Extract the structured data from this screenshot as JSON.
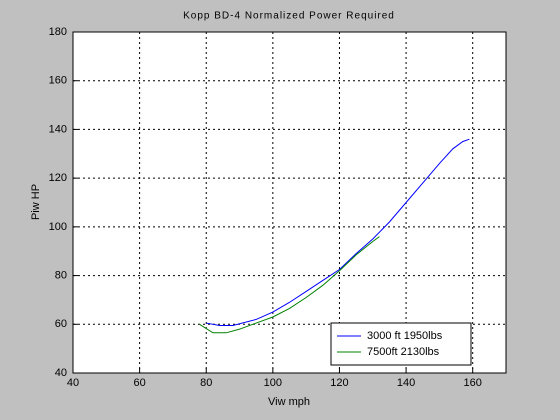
{
  "chart_data": {
    "type": "line",
    "title": "Kopp BD-4 Normalized Power Required",
    "x_label": "Viw mph",
    "y_label": "Piw HP",
    "xlim": [
      40,
      170
    ],
    "xticks": [
      40,
      60,
      80,
      100,
      120,
      140,
      160
    ],
    "ylim": [
      40,
      180
    ],
    "yticks": [
      40,
      60,
      80,
      100,
      120,
      140,
      160,
      180
    ],
    "grid": true,
    "legend": "lower right",
    "series": [
      {
        "name": "3000 ft 1950lbs",
        "color": "#0000ff",
        "x": [
          80,
          84,
          88,
          95,
          100,
          105,
          110,
          115,
          120,
          125,
          130,
          135,
          140,
          145,
          150,
          154,
          157,
          159
        ],
        "values": [
          60.5,
          59.5,
          59.5,
          62,
          65,
          69,
          73.5,
          78,
          82.5,
          89,
          95,
          102,
          110,
          118,
          126,
          132,
          135,
          136
        ]
      },
      {
        "name": "7500ft 2130lbs",
        "color": "#008000",
        "x": [
          78,
          82,
          86,
          90,
          95,
          100,
          105,
          110,
          115,
          120,
          125,
          130,
          132
        ],
        "values": [
          60,
          56.5,
          56.5,
          58,
          60.5,
          63,
          66.5,
          71,
          76,
          82,
          88.5,
          94,
          96
        ]
      }
    ]
  }
}
